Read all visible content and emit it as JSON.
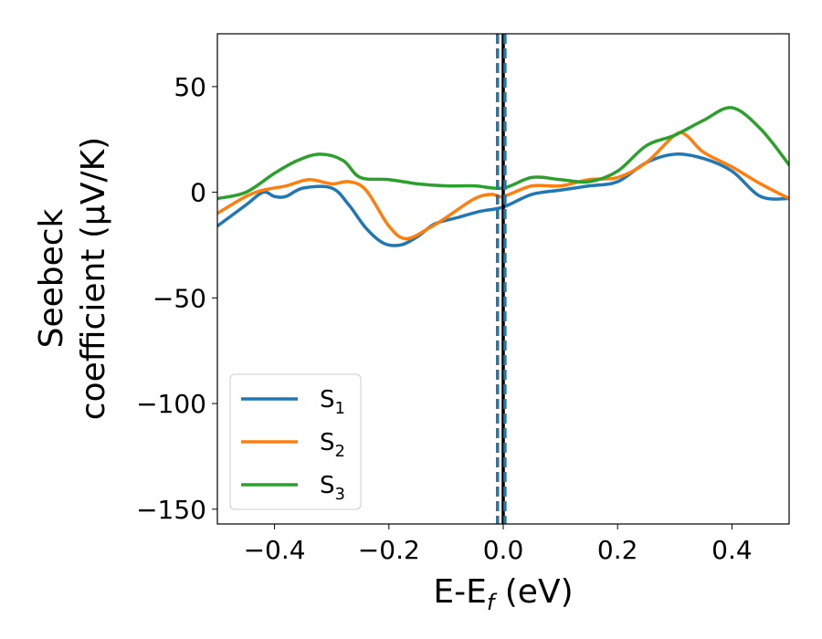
{
  "chart_data": {
    "type": "line",
    "xlabel": "E-E",
    "xlabel_sub": "f",
    "xlabel_unit": " (eV)",
    "ylabel_line1": "Seebeck",
    "ylabel_line2": "coefficient  (μV/K)",
    "xlim": [
      -0.5,
      0.5
    ],
    "ylim": [
      -157,
      75
    ],
    "xticks": [
      -0.4,
      -0.2,
      0.0,
      0.2,
      0.4
    ],
    "xtick_labels": [
      "−0.4",
      "−0.2",
      "0.0",
      "0.2",
      "0.4"
    ],
    "yticks": [
      50,
      0,
      -50,
      -100,
      -150
    ],
    "ytick_labels": [
      "50",
      "0",
      "−50",
      "−100",
      "−150"
    ],
    "grid": false,
    "legend_position": "lower-left",
    "reference_lines": [
      {
        "x": 0.0,
        "style": "solid",
        "color": "#000000"
      },
      {
        "x": -0.01,
        "style": "dashed",
        "color": "#1f77b4"
      },
      {
        "x": 0.003,
        "style": "dashed",
        "color": "#1f77b4"
      }
    ],
    "series": [
      {
        "name": "S",
        "name_sub": "1",
        "color": "#1f77b4",
        "x": [
          -0.5,
          -0.45,
          -0.42,
          -0.4,
          -0.38,
          -0.35,
          -0.3,
          -0.27,
          -0.24,
          -0.21,
          -0.18,
          -0.15,
          -0.12,
          -0.08,
          -0.04,
          0.0,
          0.05,
          0.1,
          0.15,
          0.2,
          0.25,
          0.3,
          0.35,
          0.4,
          0.45,
          0.5
        ],
        "y": [
          -16,
          -6,
          0,
          -2,
          -2,
          2,
          2,
          -6,
          -17,
          -24,
          -25,
          -21,
          -15,
          -12,
          -9,
          -7,
          -1,
          1,
          3,
          5,
          14,
          18,
          16,
          10,
          -2,
          -3
        ]
      },
      {
        "name": "S",
        "name_sub": "2",
        "color": "#ff7f0e",
        "x": [
          -0.5,
          -0.45,
          -0.42,
          -0.38,
          -0.34,
          -0.3,
          -0.27,
          -0.24,
          -0.2,
          -0.17,
          -0.13,
          -0.1,
          -0.05,
          -0.02,
          0.0,
          0.05,
          0.1,
          0.15,
          0.2,
          0.25,
          0.3,
          0.32,
          0.35,
          0.4,
          0.45,
          0.5
        ],
        "y": [
          -10,
          -2,
          1,
          3,
          6,
          4,
          5,
          1,
          -16,
          -22,
          -17,
          -12,
          -3,
          -1,
          -2,
          3,
          3,
          6,
          7,
          14,
          27,
          27,
          19,
          12,
          4,
          -3
        ]
      },
      {
        "name": "S",
        "name_sub": "3",
        "color": "#2ca02c",
        "x": [
          -0.5,
          -0.45,
          -0.4,
          -0.36,
          -0.32,
          -0.28,
          -0.25,
          -0.2,
          -0.15,
          -0.1,
          -0.05,
          0.0,
          0.05,
          0.1,
          0.15,
          0.2,
          0.25,
          0.3,
          0.35,
          0.4,
          0.45,
          0.5
        ],
        "y": [
          -3,
          0,
          9,
          15,
          18,
          15,
          7,
          6,
          4,
          3,
          3,
          2,
          7,
          6,
          5,
          10,
          22,
          27,
          34,
          40,
          30,
          13
        ]
      }
    ]
  }
}
